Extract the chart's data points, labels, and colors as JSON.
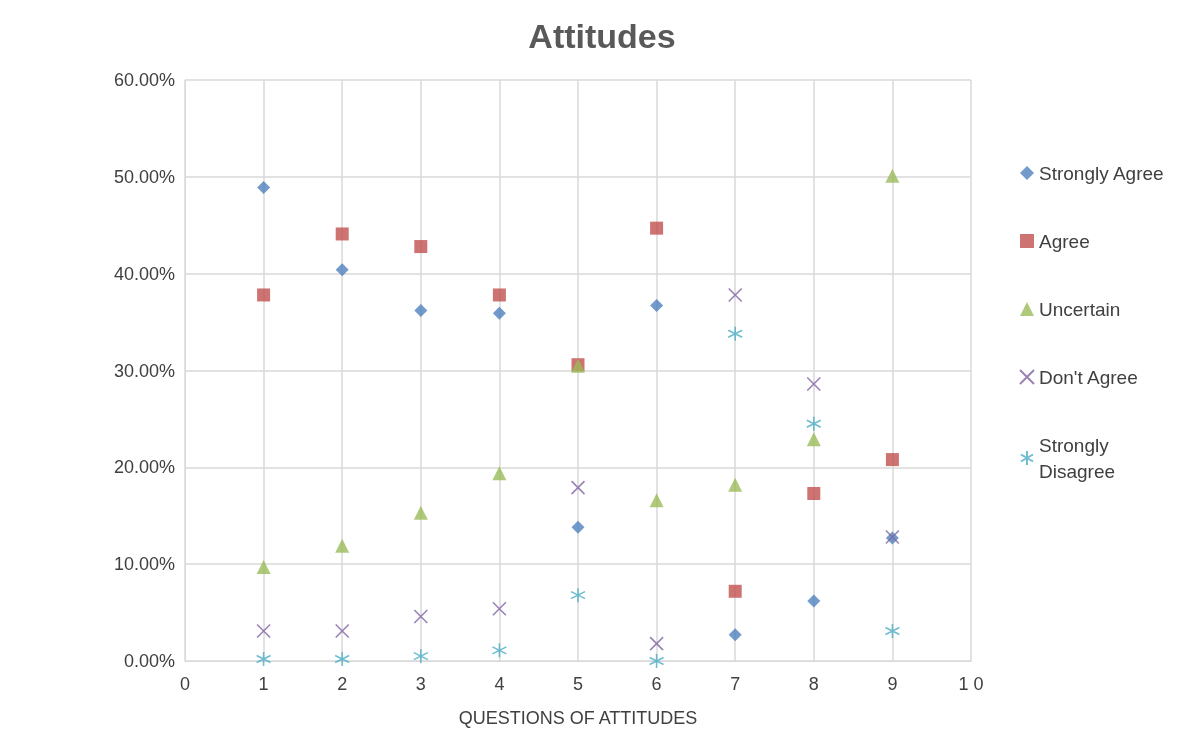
{
  "chart_data": {
    "type": "scatter",
    "title": "Attitudes",
    "xlabel": "QUESTIONS OF ATTITUDES",
    "x": [
      1,
      2,
      3,
      4,
      5,
      6,
      7,
      8,
      9
    ],
    "series": [
      {
        "name": "Strongly Agree",
        "color": "#4f81bd",
        "marker": "diamond",
        "values": [
          48.9,
          40.4,
          36.2,
          35.9,
          13.8,
          36.7,
          2.7,
          6.2,
          12.7
        ]
      },
      {
        "name": "Agree",
        "color": "#c0504d",
        "marker": "square",
        "values": [
          37.8,
          44.1,
          42.8,
          37.8,
          30.6,
          44.7,
          7.2,
          17.3,
          20.8
        ]
      },
      {
        "name": "Uncertain",
        "color": "#9bbb59",
        "marker": "triangle",
        "values": [
          9.7,
          11.9,
          15.3,
          19.4,
          30.5,
          16.6,
          18.2,
          22.9,
          50.1
        ]
      },
      {
        "name": "Don't Agree",
        "color": "#8064a2",
        "marker": "cross",
        "values": [
          3.1,
          3.1,
          4.6,
          5.4,
          17.9,
          1.8,
          37.8,
          28.6,
          12.8
        ]
      },
      {
        "name": "Strongly Disagree",
        "color": "#4bacc6",
        "values": [
          0.2,
          0.2,
          0.5,
          1.1,
          6.8,
          0,
          33.8,
          24.5,
          3.1
        ]
      }
    ],
    "xlim": [
      0,
      10
    ],
    "xticks": [
      0,
      1,
      2,
      3,
      4,
      5,
      6,
      7,
      8,
      9,
      {
        "value": 10,
        "label": "1 0"
      }
    ],
    "ylim": [
      0,
      60
    ],
    "yticks": [
      {
        "value": 0,
        "label": "0.00%"
      },
      {
        "value": 10,
        "label": "10.00%"
      },
      {
        "value": 20,
        "label": "20.00%"
      },
      {
        "value": 30,
        "label": "30.00%"
      },
      {
        "value": 40,
        "label": "40.00%"
      },
      {
        "value": 50,
        "label": "50.00%"
      },
      {
        "value": 60,
        "label": "60.00%"
      }
    ],
    "grid": true,
    "legend": "right"
  }
}
